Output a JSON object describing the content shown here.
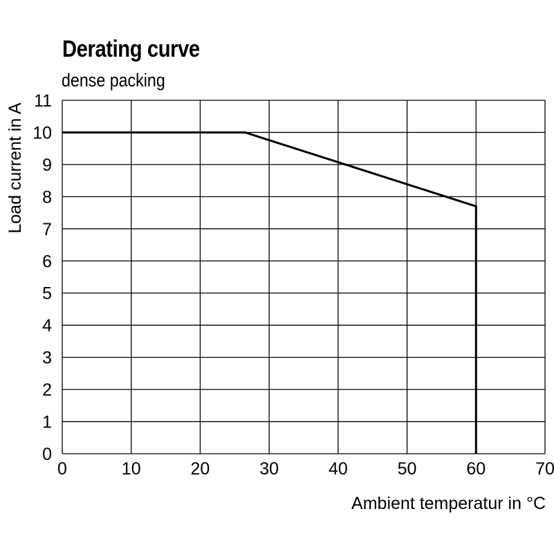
{
  "chart_data": {
    "type": "line",
    "title": "Derating curve",
    "subtitle": "dense packing",
    "xlabel": "Ambient temperatur in °C",
    "ylabel": "Load  current in A",
    "xlim": [
      0,
      70
    ],
    "ylim": [
      0,
      11
    ],
    "xticks": [
      0,
      10,
      20,
      30,
      40,
      50,
      60,
      70
    ],
    "yticks": [
      0,
      1,
      2,
      3,
      4,
      5,
      6,
      7,
      8,
      9,
      10,
      11
    ],
    "grid": true,
    "series": [
      {
        "x": [
          0,
          26.5,
          60,
          60
        ],
        "y": [
          10,
          10,
          7.7,
          0
        ]
      }
    ]
  }
}
